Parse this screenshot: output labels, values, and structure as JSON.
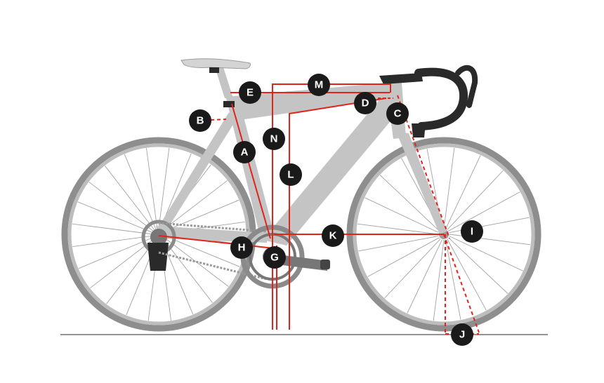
{
  "diagram": {
    "colors": {
      "frame": "#c4c4c4",
      "frame_dark": "#a9a9a9",
      "tyre": "#8e8e8e",
      "tyre_inner": "#b9b9b9",
      "spoke": "#9a9a9a",
      "measure": "#e0241b",
      "badge": "#1a1a1a",
      "badge_text": "#ffffff",
      "ground": "#555555",
      "parts": "#2a2a2a"
    },
    "labels": {
      "A": "A",
      "B": "B",
      "C": "C",
      "D": "D",
      "E": "E",
      "G": "G",
      "H": "H",
      "I": "I",
      "J": "J",
      "K": "K",
      "L": "L",
      "M": "M",
      "N": "N"
    }
  }
}
